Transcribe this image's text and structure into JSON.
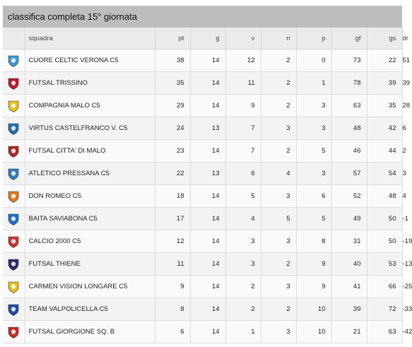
{
  "title": "classifica completa 15° giornata",
  "columns": [
    "squadra",
    "pt",
    "g",
    "v",
    "n",
    "p",
    "gf",
    "gs",
    "dr"
  ],
  "rows": [
    {
      "team": "CUORE CELTIC VERONA C5",
      "pt": "38",
      "g": "14",
      "v": "12",
      "n": "2",
      "p": "0",
      "gf": "73",
      "gs": "22",
      "dr": "51",
      "logo": "cuore-celtic-logo",
      "color": "#3a9ad9"
    },
    {
      "team": "FUTSAL TRISSINO",
      "pt": "35",
      "g": "14",
      "v": "11",
      "n": "2",
      "p": "1",
      "gf": "78",
      "gs": "39",
      "dr": "39",
      "logo": "futsal-trissino-logo",
      "color": "#c0142a"
    },
    {
      "team": "COMPAGNIA MALO C5",
      "pt": "29",
      "g": "14",
      "v": "9",
      "n": "2",
      "p": "3",
      "gf": "63",
      "gs": "35",
      "dr": "28",
      "logo": "compagnia-malo-logo",
      "color": "#e8c21a"
    },
    {
      "team": "VIRTUS CASTELFRANCO V. C5",
      "pt": "24",
      "g": "13",
      "v": "7",
      "n": "3",
      "p": "3",
      "gf": "48",
      "gs": "42",
      "dr": "6",
      "logo": "virtus-castelfranco-logo",
      "color": "#1f6fb5"
    },
    {
      "team": "FUTSAL CITTA' DI MALO",
      "pt": "23",
      "g": "14",
      "v": "7",
      "n": "2",
      "p": "5",
      "gf": "46",
      "gs": "44",
      "dr": "2",
      "logo": "futsal-citta-di-malo-logo",
      "color": "#b22222"
    },
    {
      "team": "ATLETICO PRESSANA C5",
      "pt": "22",
      "g": "13",
      "v": "6",
      "n": "4",
      "p": "3",
      "gf": "57",
      "gs": "54",
      "dr": "3",
      "logo": "atletico-pressana-logo",
      "color": "#2f7fc1"
    },
    {
      "team": "DON ROMEO C5",
      "pt": "18",
      "g": "14",
      "v": "5",
      "n": "3",
      "p": "6",
      "gf": "52",
      "gs": "48",
      "dr": "4",
      "logo": "don-romeo-logo",
      "color": "#e07b20"
    },
    {
      "team": "BAITA SAVIABONA C5",
      "pt": "17",
      "g": "14",
      "v": "4",
      "n": "5",
      "p": "5",
      "gf": "49",
      "gs": "50",
      "dr": "-1",
      "logo": "baita-saviabona-logo",
      "color": "#1d6fd1"
    },
    {
      "team": "CALCIO 2000 C5",
      "pt": "12",
      "g": "14",
      "v": "3",
      "n": "3",
      "p": "8",
      "gf": "31",
      "gs": "50",
      "dr": "-19",
      "logo": "calcio-2000-logo",
      "color": "#d32f2f"
    },
    {
      "team": "FUTSAL THIENE",
      "pt": "11",
      "g": "14",
      "v": "3",
      "n": "2",
      "p": "9",
      "gf": "40",
      "gs": "53",
      "dr": "-13",
      "logo": "futsal-thiene-logo",
      "color": "#2a2a6a"
    },
    {
      "team": "CARMEN VISION LONGARE C5",
      "pt": "9",
      "g": "14",
      "v": "2",
      "n": "3",
      "p": "9",
      "gf": "41",
      "gs": "66",
      "dr": "-25",
      "logo": "carmen-vision-logo",
      "color": "#e3c21c"
    },
    {
      "team": "TEAM VALPOLICELLA C5",
      "pt": "8",
      "g": "14",
      "v": "2",
      "n": "2",
      "p": "10",
      "gf": "39",
      "gs": "72",
      "dr": "-33",
      "logo": "team-valpolicella-logo",
      "color": "#1f4aa8"
    },
    {
      "team": "FUTSAL GIORGIONE Sq. B",
      "pt": "6",
      "g": "14",
      "v": "1",
      "n": "3",
      "p": "10",
      "gf": "21",
      "gs": "63",
      "dr": "-42",
      "logo": "futsal-giorgione-logo",
      "color": "#c62828"
    }
  ]
}
